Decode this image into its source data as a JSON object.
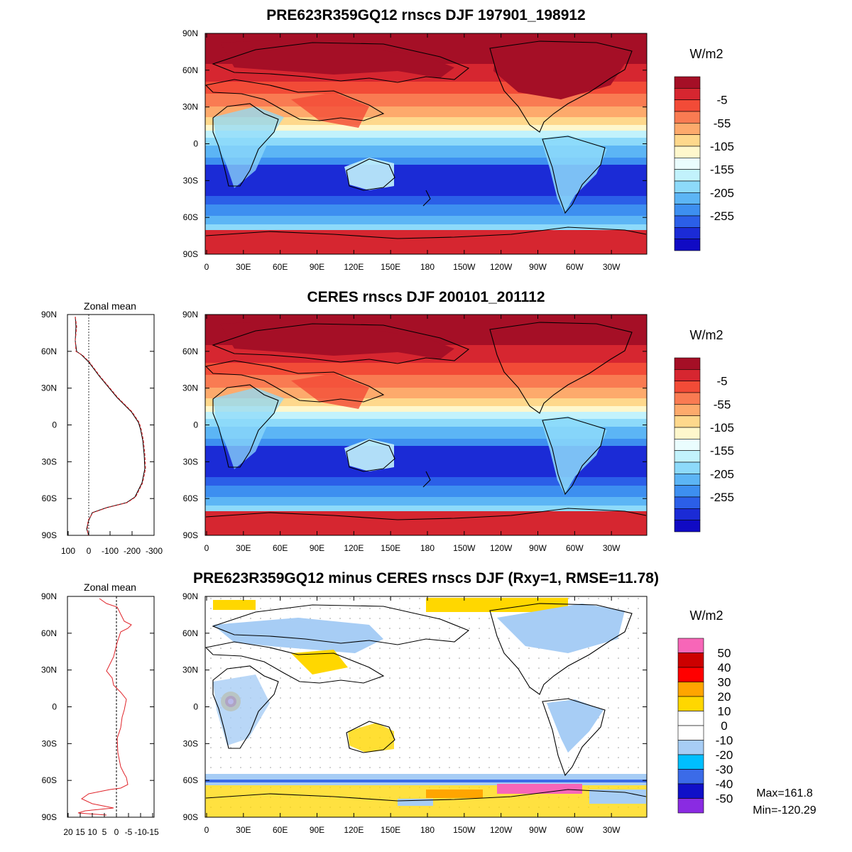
{
  "titles": {
    "top": "PRE623R359GQ12 rnscs DJF 197901_198912",
    "middle": "CERES rnscs DJF 200101_201112",
    "bottom": "PRE623R359GQ12 minus CERES rnscs DJF (Rxy=1, RMSE=11.78)"
  },
  "axes": {
    "lat_labels": [
      "90N",
      "60N",
      "30N",
      "0",
      "30S",
      "60S",
      "90S"
    ],
    "lon_labels": [
      "0",
      "30E",
      "60E",
      "90E",
      "120E",
      "150E",
      "180",
      "150W",
      "120W",
      "90W",
      "60W",
      "30W"
    ]
  },
  "units": {
    "top": "W/m2",
    "middle": "W/m2",
    "bottom": "W/m2"
  },
  "colorbar_abs": {
    "labels": [
      "-5",
      "-55",
      "-105",
      "-155",
      "-205",
      "-255"
    ],
    "colors": [
      "#a50f26",
      "#d62630",
      "#f24b37",
      "#f97b52",
      "#fdaa6c",
      "#fed88c",
      "#fef7cc",
      "#eafdfe",
      "#c2f2fc",
      "#8ddafa",
      "#5cb5f5",
      "#3d8ff0",
      "#2b5fe8",
      "#1b2bd6",
      "#100ac4"
    ]
  },
  "colorbar_diff": {
    "labels": [
      "50",
      "40",
      "30",
      "20",
      "10",
      "0",
      "-10",
      "-20",
      "-30",
      "-40",
      "-50"
    ],
    "colors": [
      "#f766b8",
      "#cc0000",
      "#ff0000",
      "#ffa500",
      "#ffd700",
      "#ffffff",
      "#ffffff",
      "#a7cdf5",
      "#00bfff",
      "#3b6be8",
      "#1010c8",
      "#8a2be2"
    ]
  },
  "zonal_mean_title": "Zonal mean",
  "zonal_mean_middle_xticks": [
    "100",
    "0",
    "-100",
    "-200",
    "-300"
  ],
  "zonal_mean_bottom_xticks": [
    "20",
    "15",
    "10",
    "5",
    "0",
    "-5",
    "-10",
    "-15"
  ],
  "stats": {
    "max": "Max=161.8",
    "min": "Min=-120.29"
  },
  "map_panels": {
    "top": {
      "zonal_rnscs_by_lat": [
        [
          90,
          0
        ],
        [
          75,
          0
        ],
        [
          60,
          -20
        ],
        [
          45,
          -60
        ],
        [
          30,
          -120
        ],
        [
          15,
          -180
        ],
        [
          0,
          -215
        ],
        [
          -15,
          -240
        ],
        [
          -30,
          -265
        ],
        [
          -45,
          -250
        ],
        [
          -55,
          -215
        ],
        [
          -62,
          -150
        ],
        [
          -70,
          -30
        ],
        [
          -80,
          -5
        ],
        [
          -90,
          0
        ]
      ]
    },
    "middle": {
      "zonal_rnscs_by_lat": [
        [
          90,
          0
        ],
        [
          75,
          0
        ],
        [
          60,
          -20
        ],
        [
          45,
          -60
        ],
        [
          30,
          -120
        ],
        [
          15,
          -180
        ],
        [
          0,
          -215
        ],
        [
          -15,
          -240
        ],
        [
          -30,
          -265
        ],
        [
          -45,
          -250
        ],
        [
          -55,
          -215
        ],
        [
          -62,
          -150
        ],
        [
          -70,
          -30
        ],
        [
          -80,
          -5
        ],
        [
          -90,
          0
        ]
      ]
    }
  }
}
